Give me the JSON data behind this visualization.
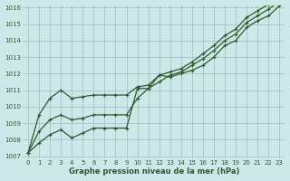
{
  "title": "Graphe pression niveau de la mer (hPa)",
  "background_color": "#cce8e8",
  "grid_color": "#9dbfbf",
  "line_color": "#2d5a2d",
  "x_values": [
    0,
    1,
    2,
    3,
    4,
    5,
    6,
    7,
    8,
    9,
    10,
    11,
    12,
    13,
    14,
    15,
    16,
    17,
    18,
    19,
    20,
    21,
    22,
    23
  ],
  "line1": [
    1007.2,
    1007.8,
    1008.3,
    1008.6,
    1008.1,
    1008.4,
    1008.7,
    1008.7,
    1008.7,
    1008.7,
    1011.1,
    1011.1,
    1011.9,
    1011.8,
    1012.0,
    1012.2,
    1012.5,
    1013.0,
    1013.7,
    1014.0,
    1014.8,
    1015.2,
    1015.5,
    1016.1
  ],
  "line2": [
    1007.2,
    1008.5,
    1009.2,
    1009.5,
    1009.2,
    1009.3,
    1009.5,
    1009.5,
    1009.5,
    1009.5,
    1010.5,
    1011.1,
    1011.5,
    1011.9,
    1012.1,
    1012.5,
    1012.9,
    1013.4,
    1014.0,
    1014.4,
    1015.1,
    1015.5,
    1015.9,
    1016.4
  ],
  "line3": [
    1007.2,
    1009.5,
    1010.5,
    1011.0,
    1010.5,
    1010.6,
    1010.7,
    1010.7,
    1010.7,
    1010.7,
    1011.2,
    1011.3,
    1011.9,
    1012.1,
    1012.3,
    1012.7,
    1013.2,
    1013.7,
    1014.3,
    1014.7,
    1015.4,
    1015.8,
    1016.2,
    1016.5
  ],
  "ylim": [
    1007,
    1016
  ],
  "xlim": [
    -0.5,
    23.5
  ],
  "yticks": [
    1007,
    1008,
    1009,
    1010,
    1011,
    1012,
    1013,
    1014,
    1015,
    1016
  ],
  "xticks": [
    0,
    1,
    2,
    3,
    4,
    5,
    6,
    7,
    8,
    9,
    10,
    11,
    12,
    13,
    14,
    15,
    16,
    17,
    18,
    19,
    20,
    21,
    22,
    23
  ],
  "tick_fontsize": 5.0,
  "label_fontsize": 6.0,
  "linewidth": 0.9,
  "markersize": 2.5
}
